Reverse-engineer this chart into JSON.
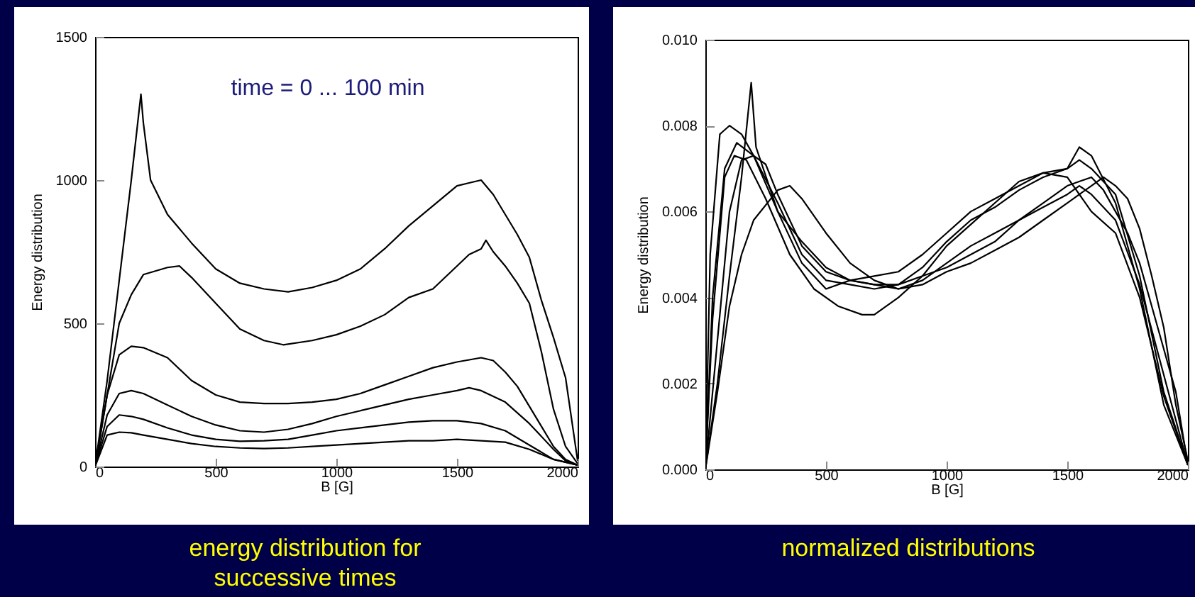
{
  "chart_data": [
    {
      "type": "line",
      "title": "energy distribution for successive times",
      "xlabel": "B [G]",
      "ylabel": "Energy distribution",
      "annotations": [
        "time = 0 ... 100 min"
      ],
      "xlim": [
        0,
        2000
      ],
      "ylim": [
        0,
        1500
      ],
      "xticks": [
        0,
        500,
        1000,
        1500,
        2000
      ],
      "yticks": [
        0,
        500,
        1000,
        1500
      ],
      "series": [
        {
          "color": "#000000",
          "x": [
            0,
            50,
            100,
            150,
            190,
            200,
            230,
            300,
            400,
            500,
            600,
            700,
            800,
            900,
            1000,
            1100,
            1200,
            1300,
            1400,
            1500,
            1550,
            1600,
            1650,
            1700,
            1750,
            1800,
            1850,
            1900,
            1950,
            2000
          ],
          "values": [
            0,
            300,
            650,
            1000,
            1300,
            1200,
            1000,
            880,
            780,
            690,
            640,
            620,
            610,
            625,
            650,
            690,
            760,
            840,
            910,
            980,
            990,
            1000,
            950,
            880,
            810,
            730,
            580,
            450,
            310,
            20
          ]
        },
        {
          "color": "#000000",
          "x": [
            0,
            50,
            100,
            150,
            200,
            300,
            350,
            400,
            500,
            600,
            700,
            780,
            900,
            1000,
            1100,
            1200,
            1300,
            1400,
            1500,
            1550,
            1600,
            1620,
            1650,
            1700,
            1750,
            1800,
            1850,
            1900,
            1950,
            2000
          ],
          "values": [
            0,
            250,
            500,
            600,
            670,
            695,
            700,
            660,
            570,
            480,
            440,
            425,
            440,
            460,
            490,
            530,
            590,
            620,
            700,
            740,
            760,
            790,
            750,
            700,
            640,
            570,
            400,
            200,
            70,
            10
          ]
        },
        {
          "color": "#000000",
          "x": [
            0,
            50,
            100,
            150,
            200,
            300,
            400,
            500,
            600,
            700,
            800,
            900,
            1000,
            1100,
            1200,
            1300,
            1400,
            1500,
            1600,
            1650,
            1700,
            1750,
            1800,
            1850,
            1900,
            1950,
            2000
          ],
          "values": [
            0,
            250,
            390,
            420,
            415,
            380,
            300,
            250,
            225,
            220,
            220,
            225,
            235,
            255,
            285,
            315,
            345,
            365,
            380,
            370,
            330,
            280,
            210,
            140,
            70,
            25,
            5
          ]
        },
        {
          "color": "#000000",
          "x": [
            0,
            50,
            100,
            150,
            200,
            300,
            400,
            500,
            600,
            700,
            800,
            900,
            1000,
            1100,
            1200,
            1300,
            1400,
            1500,
            1550,
            1600,
            1700,
            1800,
            1900,
            1950,
            2000
          ],
          "values": [
            0,
            180,
            255,
            265,
            255,
            215,
            175,
            145,
            125,
            120,
            130,
            150,
            175,
            195,
            215,
            235,
            250,
            265,
            275,
            265,
            225,
            150,
            60,
            20,
            5
          ]
        },
        {
          "color": "#000000",
          "x": [
            0,
            50,
            100,
            150,
            200,
            300,
            400,
            500,
            600,
            700,
            800,
            900,
            1000,
            1100,
            1200,
            1300,
            1400,
            1500,
            1600,
            1700,
            1800,
            1900,
            2000
          ],
          "values": [
            0,
            140,
            180,
            175,
            165,
            135,
            110,
            95,
            88,
            90,
            95,
            110,
            125,
            135,
            145,
            155,
            160,
            160,
            150,
            125,
            75,
            25,
            5
          ]
        },
        {
          "color": "#000000",
          "x": [
            0,
            50,
            100,
            150,
            200,
            300,
            400,
            500,
            600,
            700,
            800,
            900,
            1000,
            1100,
            1200,
            1300,
            1400,
            1500,
            1600,
            1700,
            1800,
            1900,
            2000
          ],
          "values": [
            0,
            110,
            120,
            118,
            110,
            95,
            80,
            70,
            65,
            63,
            65,
            70,
            75,
            80,
            85,
            90,
            90,
            95,
            90,
            85,
            60,
            25,
            5
          ]
        }
      ]
    },
    {
      "type": "line",
      "title": "normalized distributions",
      "xlabel": "B [G]",
      "ylabel": "Energy distribution",
      "xlim": [
        0,
        2000
      ],
      "ylim": [
        0,
        0.01
      ],
      "xticks": [
        0,
        500,
        1000,
        1500,
        2000
      ],
      "yticks": [
        {
          "value": 0,
          "label": "0.000"
        },
        {
          "value": 0.002,
          "label": "0.002"
        },
        {
          "value": 0.004,
          "label": "0.004"
        },
        {
          "value": 0.006,
          "label": "0.006"
        },
        {
          "value": 0.008,
          "label": "0.008"
        },
        {
          "value": 0.01,
          "label": "0.010"
        }
      ],
      "series": [
        {
          "color": "#000000",
          "x": [
            0,
            50,
            100,
            150,
            190,
            210,
            300,
            400,
            500,
            600,
            700,
            800,
            900,
            1000,
            1100,
            1200,
            1300,
            1400,
            1500,
            1600,
            1650,
            1700,
            1750,
            1800,
            1850,
            1900,
            1950,
            2000
          ],
          "values": [
            0,
            0.002,
            0.0045,
            0.0068,
            0.009,
            0.0075,
            0.006,
            0.0053,
            0.0047,
            0.0044,
            0.0043,
            0.0043,
            0.0045,
            0.0047,
            0.005,
            0.0053,
            0.0058,
            0.0062,
            0.0066,
            0.0068,
            0.0065,
            0.006,
            0.0055,
            0.0048,
            0.0038,
            0.0028,
            0.0018,
            0.0001
          ]
        },
        {
          "color": "#000000",
          "x": [
            0,
            50,
            100,
            150,
            200,
            300,
            350,
            400,
            500,
            600,
            700,
            800,
            900,
            1000,
            1100,
            1200,
            1300,
            1400,
            1500,
            1600,
            1650,
            1700,
            1750,
            1800,
            1850,
            1900,
            1950,
            2000
          ],
          "values": [
            0,
            0.0018,
            0.0038,
            0.005,
            0.0058,
            0.0065,
            0.0066,
            0.0063,
            0.0055,
            0.0048,
            0.0044,
            0.0042,
            0.0043,
            0.0046,
            0.0048,
            0.0051,
            0.0054,
            0.0058,
            0.0062,
            0.0066,
            0.0068,
            0.0066,
            0.0063,
            0.0056,
            0.0045,
            0.0033,
            0.0015,
            0.0002
          ]
        },
        {
          "color": "#000000",
          "x": [
            0,
            50,
            100,
            150,
            200,
            250,
            300,
            400,
            500,
            600,
            700,
            800,
            900,
            1000,
            1100,
            1200,
            1300,
            1400,
            1500,
            1550,
            1600,
            1700,
            1800,
            1900,
            2000
          ],
          "values": [
            0,
            0.003,
            0.006,
            0.0072,
            0.0073,
            0.0071,
            0.0064,
            0.0052,
            0.0046,
            0.0044,
            0.0043,
            0.0042,
            0.0044,
            0.0048,
            0.0052,
            0.0055,
            0.0058,
            0.0061,
            0.0064,
            0.0066,
            0.0064,
            0.0058,
            0.0043,
            0.0022,
            0.0001
          ]
        },
        {
          "color": "#000000",
          "x": [
            0,
            30,
            80,
            130,
            200,
            300,
            400,
            500,
            600,
            700,
            800,
            900,
            1000,
            1100,
            1200,
            1300,
            1400,
            1500,
            1550,
            1600,
            1700,
            1800,
            1900,
            2000
          ],
          "values": [
            0,
            0.004,
            0.007,
            0.0076,
            0.0073,
            0.0062,
            0.005,
            0.0044,
            0.0043,
            0.0042,
            0.0043,
            0.0047,
            0.0053,
            0.0058,
            0.0061,
            0.0065,
            0.0068,
            0.007,
            0.0072,
            0.007,
            0.0064,
            0.0045,
            0.0018,
            0.0001
          ]
        },
        {
          "color": "#000000",
          "x": [
            0,
            20,
            60,
            100,
            150,
            200,
            300,
            400,
            500,
            600,
            700,
            800,
            900,
            1000,
            1100,
            1200,
            1300,
            1400,
            1500,
            1550,
            1600,
            1700,
            1800,
            1900,
            2000
          ],
          "values": [
            0,
            0.005,
            0.0078,
            0.008,
            0.0078,
            0.0073,
            0.006,
            0.0048,
            0.0042,
            0.0044,
            0.0045,
            0.0046,
            0.005,
            0.0055,
            0.006,
            0.0063,
            0.0066,
            0.0069,
            0.007,
            0.0075,
            0.0073,
            0.0062,
            0.0042,
            0.0015,
            0.0001
          ]
        },
        {
          "color": "#000000",
          "x": [
            0,
            30,
            80,
            120,
            170,
            250,
            350,
            450,
            550,
            650,
            700,
            800,
            900,
            1000,
            1100,
            1200,
            1300,
            1400,
            1500,
            1600,
            1700,
            1800,
            1900,
            2000
          ],
          "values": [
            0,
            0.0035,
            0.0068,
            0.0073,
            0.0072,
            0.0063,
            0.005,
            0.0042,
            0.0038,
            0.0036,
            0.0036,
            0.004,
            0.0045,
            0.0052,
            0.0057,
            0.0062,
            0.0067,
            0.0069,
            0.0068,
            0.006,
            0.0055,
            0.004,
            0.0017,
            0.0001
          ]
        }
      ]
    }
  ]
}
